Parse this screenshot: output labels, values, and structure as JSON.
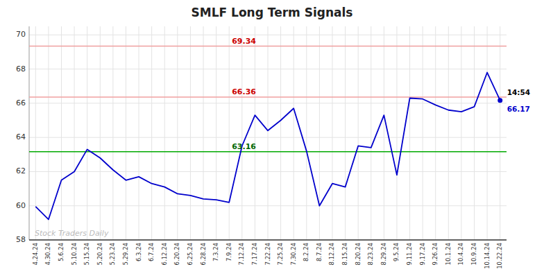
{
  "chart_data": {
    "type": "line",
    "title": "SMLF Long Term Signals",
    "color": "#0000cc",
    "grid": true,
    "ylim": [
      58,
      70.5
    ],
    "yticks": [
      58,
      60,
      62,
      64,
      66,
      68,
      70
    ],
    "categories": [
      "4.24.24",
      "4.30.24",
      "5.6.24",
      "5.10.24",
      "5.15.24",
      "5.20.24",
      "5.23.24",
      "5.29.24",
      "6.3.24",
      "6.7.24",
      "6.12.24",
      "6.20.24",
      "6.25.24",
      "6.28.24",
      "7.3.24",
      "7.9.24",
      "7.12.24",
      "7.17.24",
      "7.22.24",
      "7.25.24",
      "7.30.24",
      "8.2.24",
      "8.7.24",
      "8.12.24",
      "8.15.24",
      "8.20.24",
      "8.23.24",
      "8.29.24",
      "9.5.24",
      "9.11.24",
      "9.17.24",
      "9.26.24",
      "10.1.24",
      "10.4.24",
      "10.9.24",
      "10.14.24",
      "10.22.24"
    ],
    "values": [
      59.95,
      59.2,
      61.5,
      62.0,
      63.3,
      62.8,
      62.1,
      61.5,
      61.7,
      61.3,
      61.1,
      60.7,
      60.6,
      60.4,
      60.35,
      60.2,
      63.5,
      65.3,
      64.4,
      65.0,
      65.7,
      63.2,
      60.0,
      61.3,
      61.1,
      63.5,
      63.4,
      65.3,
      61.8,
      66.3,
      66.25,
      65.9,
      65.6,
      65.5,
      65.8,
      67.8,
      66.17
    ],
    "reference_lines": [
      {
        "value": 69.34,
        "label": "69.34",
        "color": "#f0a0a0",
        "label_color": "#cc0000"
      },
      {
        "value": 66.36,
        "label": "66.36",
        "color": "#f0a0a0",
        "label_color": "#cc0000"
      },
      {
        "value": 63.16,
        "label": "63.16",
        "color": "#00aa00",
        "label_color": "#006600"
      }
    ],
    "annotations": [
      {
        "text": "14:54",
        "color": "#000000"
      },
      {
        "text": "66.17",
        "color": "#0000cc"
      }
    ],
    "watermark": {
      "text": "Stock Traders Daily",
      "color": "#bbbbbb"
    }
  }
}
